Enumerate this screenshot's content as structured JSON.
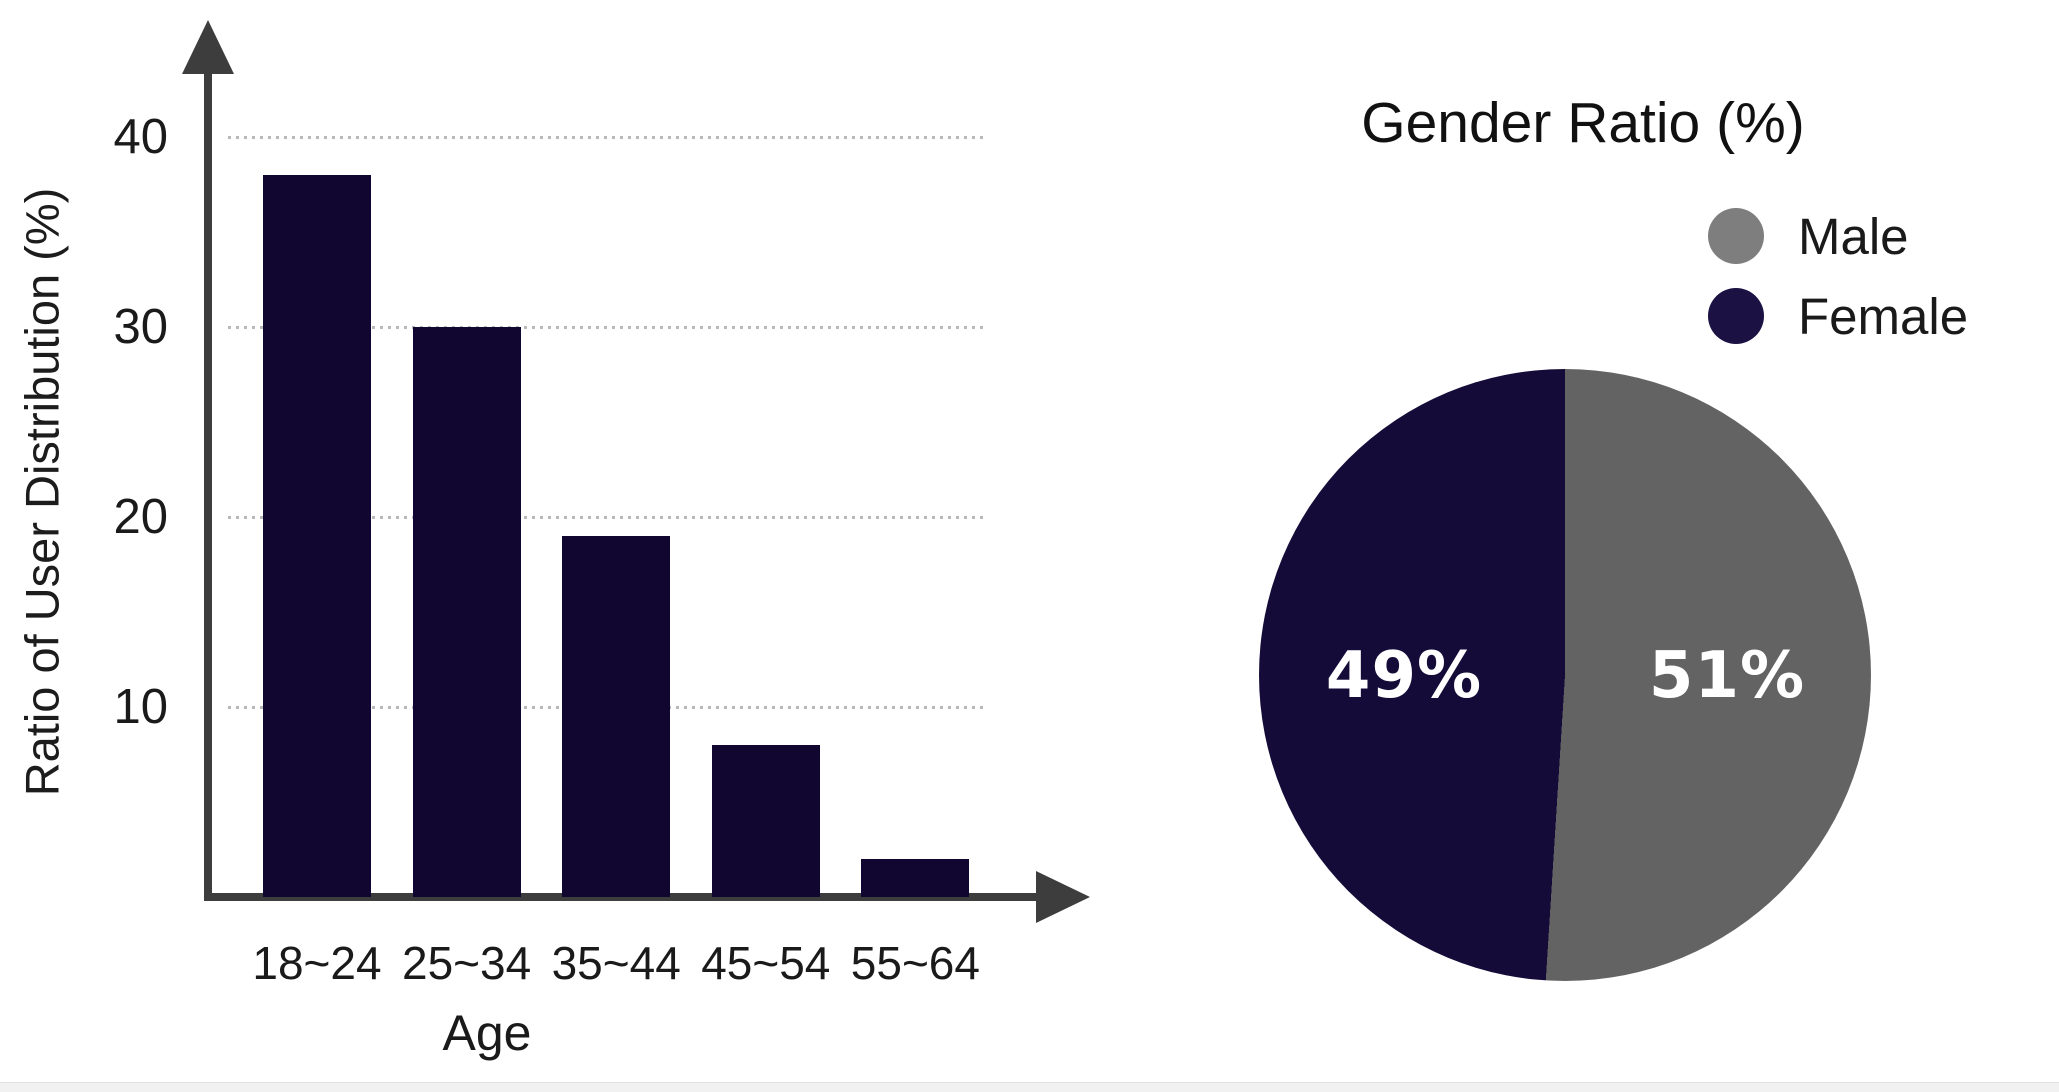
{
  "page": {
    "background_color": "#ffffff",
    "bottom_strip_color": "#f1f1f1"
  },
  "chart_data": [
    {
      "type": "bar",
      "title": "",
      "xlabel": "Age",
      "ylabel": "Ratio of User Distribution (%)",
      "categories": [
        "18~24",
        "25~34",
        "35~44",
        "45~54",
        "55~64"
      ],
      "values": [
        38,
        30,
        19,
        8,
        2
      ],
      "yticks": [
        40,
        30,
        20,
        10
      ],
      "ylim": [
        0,
        44
      ],
      "grid": "horizontal dotted lines at each y tick",
      "legend_position": "none",
      "bar_color": "#10062f",
      "axis_color": "#3d3d3d",
      "grid_color": "#b9b9b9",
      "tick_text_color": "#1a1a1a"
    },
    {
      "type": "pie",
      "title": "Gender Ratio (%)",
      "start_angle": "12 o'clock",
      "direction": "clockwise",
      "slices": [
        {
          "label": "Male",
          "value": 51,
          "pct_label": "51%",
          "color": "#636363"
        },
        {
          "label": "Female",
          "value": 49,
          "pct_label": "49%",
          "color": "#140b38"
        }
      ],
      "legend_position": "upper right",
      "legend_dot_colors": [
        "#7e7e7e",
        "#1b1243"
      ],
      "slice_label_color": "#ffffff"
    }
  ]
}
